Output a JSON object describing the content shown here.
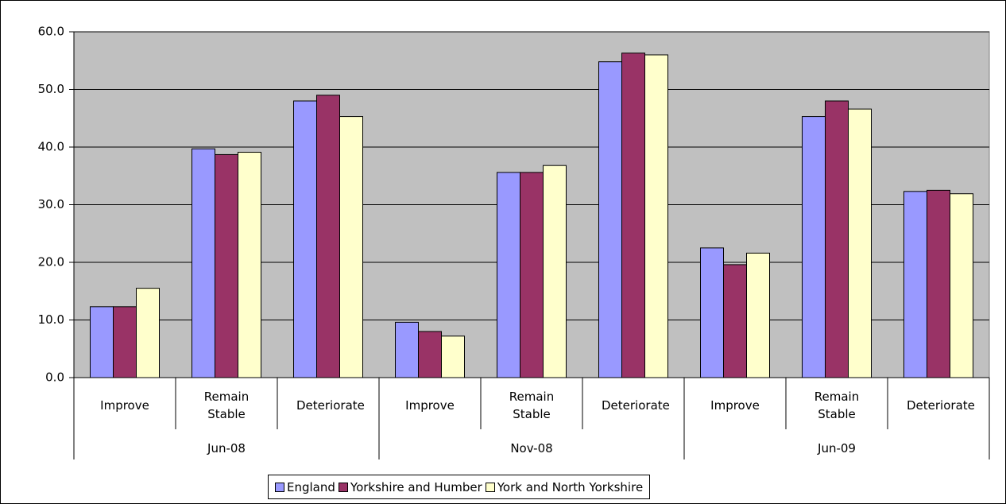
{
  "chart_data": {
    "type": "bar",
    "categories": [
      "Improve",
      "Remain Stable",
      "Deteriorate",
      "Improve",
      "Remain Stable",
      "Deteriorate",
      "Improve",
      "Remain Stable",
      "Deteriorate"
    ],
    "groups": [
      "Jun-08",
      "Nov-08",
      "Jun-09"
    ],
    "series": [
      {
        "name": "England",
        "color": "#9999ff",
        "values": [
          12.3,
          39.7,
          48.0,
          9.6,
          35.6,
          54.8,
          22.5,
          45.3,
          32.3
        ]
      },
      {
        "name": "Yorkshire and Humber",
        "color": "#993366",
        "values": [
          12.3,
          38.7,
          49.0,
          8.0,
          35.6,
          56.3,
          19.6,
          48.0,
          32.5
        ]
      },
      {
        "name": "York and North Yorkshire",
        "color": "#ffffcc",
        "values": [
          15.5,
          39.1,
          45.3,
          7.2,
          36.8,
          56.0,
          21.6,
          46.6,
          31.9
        ]
      }
    ],
    "ylim": [
      0,
      60
    ],
    "yticks": [
      {
        "value": 0,
        "label": "0.0"
      },
      {
        "value": 10,
        "label": "10.0"
      },
      {
        "value": 20,
        "label": "20.0"
      },
      {
        "value": 30,
        "label": "30.0"
      },
      {
        "value": 40,
        "label": "40.0"
      },
      {
        "value": 50,
        "label": "50.0"
      },
      {
        "value": 60,
        "label": "60.0"
      }
    ],
    "grid": true,
    "plot_background": "#c0c0c0",
    "legend": "bottom"
  }
}
